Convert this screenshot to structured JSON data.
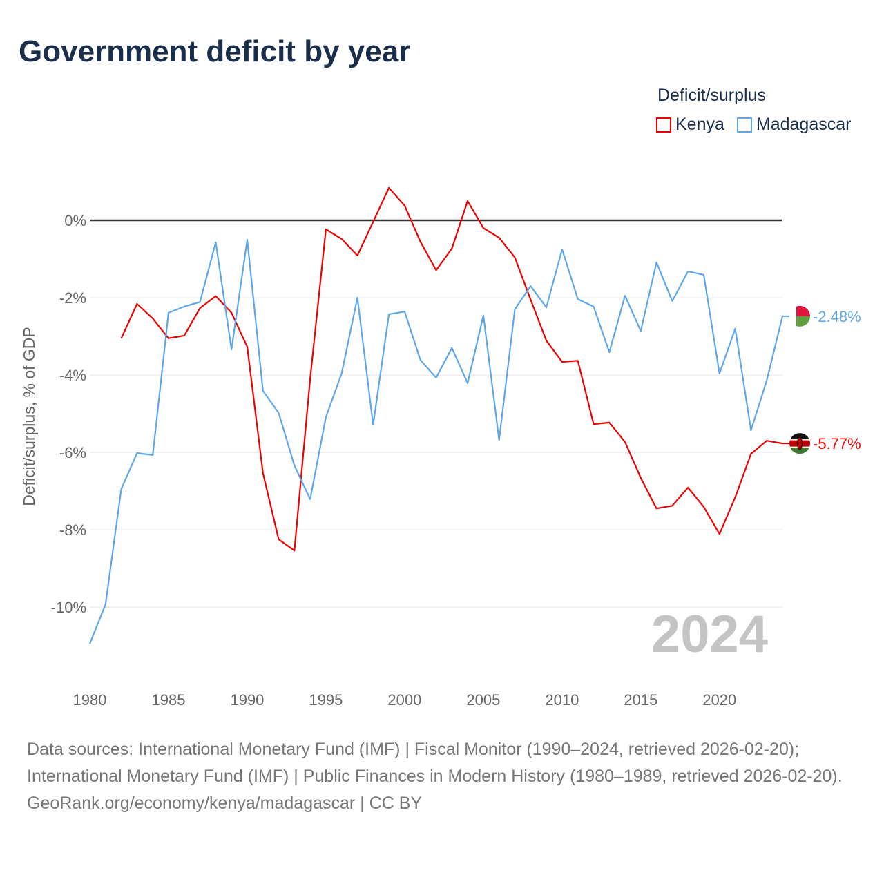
{
  "title": "Government deficit by year",
  "legend": {
    "title": "Deficit/surplus",
    "items": [
      {
        "name": "Kenya",
        "color": "#ee0000"
      },
      {
        "name": "Madagascar",
        "color": "#5ea6ea"
      }
    ]
  },
  "watermark_year": "2024",
  "footer": {
    "sources": "Data sources: International Monetary Fund (IMF) | Fiscal Monitor (1990–2024, retrieved 2026-02-20); International Monetary Fund (IMF) | Public Finances in Modern History (1980–1989, retrieved 2026-02-20).",
    "credit": "GeoRank.org/economy/kenya/madagascar | CC BY"
  },
  "chart_data": {
    "type": "line",
    "title": "Government deficit by year",
    "xlabel": "",
    "ylabel": "Deficit/surplus, % of GDP",
    "xlim": [
      1980,
      2024
    ],
    "ylim": [
      -11.2,
      1.0
    ],
    "xticks": [
      1980,
      1985,
      1990,
      1995,
      2000,
      2005,
      2010,
      2015,
      2020
    ],
    "yticks": [
      {
        "v": 0,
        "label": "0%"
      },
      {
        "v": -2,
        "label": "-2%"
      },
      {
        "v": -4,
        "label": "-4%"
      },
      {
        "v": -6,
        "label": "-6%"
      },
      {
        "v": -8,
        "label": "-8%"
      },
      {
        "v": -10,
        "label": "-10%"
      }
    ],
    "grid": true,
    "legend_position": "top-right",
    "series": [
      {
        "name": "Kenya",
        "color": "#ee0000",
        "end_label": "-5.77%",
        "start_year": 1982,
        "values": [
          -3.05,
          -2.16,
          -2.54,
          -3.05,
          -2.98,
          -2.27,
          -1.96,
          -2.39,
          -3.27,
          -6.54,
          -8.25,
          -8.54,
          -4.1,
          -0.23,
          -0.48,
          -0.91,
          -0.04,
          0.84,
          0.38,
          -0.55,
          -1.29,
          -0.73,
          0.5,
          -0.2,
          -0.45,
          -0.96,
          -2.05,
          -3.11,
          -3.66,
          -3.63,
          -5.27,
          -5.23,
          -5.73,
          -6.66,
          -7.45,
          -7.38,
          -6.91,
          -7.41,
          -8.11,
          -7.16,
          -6.04,
          -5.7,
          -5.77
        ]
      },
      {
        "name": "Madagascar",
        "color": "#5ea6ea",
        "end_label": "-2.48%",
        "start_year": 1980,
        "values": [
          -10.95,
          -9.93,
          -6.95,
          -6.02,
          -6.07,
          -2.39,
          -2.23,
          -2.11,
          -0.57,
          -3.34,
          -0.5,
          -4.41,
          -4.98,
          -6.34,
          -7.21,
          -5.09,
          -3.96,
          -2.0,
          -5.29,
          -2.43,
          -2.36,
          -3.61,
          -4.07,
          -3.3,
          -4.21,
          -2.46,
          -5.68,
          -2.3,
          -1.7,
          -2.25,
          -0.75,
          -2.04,
          -2.23,
          -3.41,
          -1.95,
          -2.86,
          -1.09,
          -2.09,
          -1.32,
          -1.41,
          -3.96,
          -2.8,
          -5.43,
          -4.14,
          -2.48
        ]
      }
    ]
  }
}
